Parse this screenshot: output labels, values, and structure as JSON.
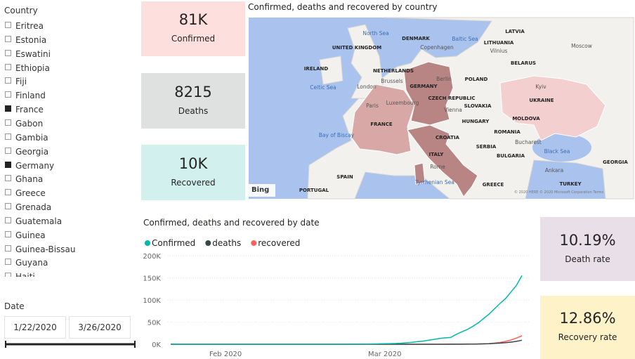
{
  "country_slicer": {
    "title": "Country",
    "items": [
      {
        "label": "Eritrea",
        "selected": false
      },
      {
        "label": "Estonia",
        "selected": false
      },
      {
        "label": "Eswatini",
        "selected": false
      },
      {
        "label": "Ethiopia",
        "selected": false
      },
      {
        "label": "Fiji",
        "selected": false
      },
      {
        "label": "Finland",
        "selected": false
      },
      {
        "label": "France",
        "selected": true
      },
      {
        "label": "Gabon",
        "selected": false
      },
      {
        "label": "Gambia",
        "selected": false
      },
      {
        "label": "Georgia",
        "selected": false
      },
      {
        "label": "Germany",
        "selected": true
      },
      {
        "label": "Ghana",
        "selected": false
      },
      {
        "label": "Greece",
        "selected": false
      },
      {
        "label": "Grenada",
        "selected": false
      },
      {
        "label": "Guatemala",
        "selected": false
      },
      {
        "label": "Guinea",
        "selected": false
      },
      {
        "label": "Guinea-Bissau",
        "selected": false
      },
      {
        "label": "Guyana",
        "selected": false
      },
      {
        "label": "Haiti",
        "selected": false
      }
    ]
  },
  "date_slicer": {
    "title": "Date",
    "start": "1/22/2020",
    "end": "3/26/2020"
  },
  "cards": [
    {
      "value": "81K",
      "label": "Confirmed"
    },
    {
      "value": "8215",
      "label": "Deaths"
    },
    {
      "value": "10K",
      "label": "Recovered"
    },
    {
      "value": "10.19%",
      "label": "Death rate"
    },
    {
      "value": "12.86%",
      "label": "Recovery rate"
    }
  ],
  "map": {
    "title": "Confirmed, deaths and recovered by country",
    "logo": "Bing",
    "attribution": "© 2020 HERE © 2020 Microsoft Corporation Terms",
    "labels": [
      "UNITED KINGDOM",
      "IRELAND",
      "London",
      "NETHERLANDS",
      "GERMANY",
      "Berlin",
      "DENMARK",
      "Copenhagen",
      "North Sea",
      "Baltic Sea",
      "LATVIA",
      "LITHUANIA",
      "Vilnius",
      "BELARUS",
      "Moscow",
      "POLAND",
      "Kyiv",
      "UKRAINE",
      "Celtic Sea",
      "Paris",
      "FRANCE",
      "CZECH REPUBLIC",
      "SLOVAKIA",
      "Vienna",
      "HUNGARY",
      "MOLDOVA",
      "ROMANIA",
      "Bucharest",
      "Bay of Biscay",
      "CROATIA",
      "SERBIA",
      "BULGARIA",
      "Black Sea",
      "ITALY",
      "Rome",
      "SPAIN",
      "GREECE",
      "TURKEY",
      "Ankara",
      "GEORGIA",
      "PORTUGAL",
      "Tyrrhenian Sea",
      "Brussels",
      "Luxembourg"
    ]
  },
  "chart_data": {
    "type": "line",
    "title": "Confirmed, deaths and recovered by date",
    "categories": [
      null,
      null,
      null,
      null,
      null,
      null,
      null,
      null,
      null,
      null,
      "Feb 2020",
      null,
      null,
      null,
      null,
      null,
      null,
      null,
      null,
      null,
      null,
      null,
      null,
      null,
      null,
      null,
      null,
      null,
      null,
      null,
      null,
      null,
      null,
      null,
      null,
      null,
      null,
      null,
      null,
      "Mar 2020",
      null,
      null,
      null,
      null,
      null,
      null,
      null,
      null,
      null,
      null,
      null,
      null,
      null,
      null,
      null,
      null,
      null,
      null,
      null,
      null,
      null,
      null,
      null,
      null,
      null
    ],
    "series": [
      {
        "name": "Confirmed",
        "color": "#01B8AA",
        "values": [
          0,
          0,
          0,
          2,
          3,
          4,
          4,
          5,
          5,
          6,
          7,
          10,
          12,
          14,
          15,
          16,
          16,
          18,
          18,
          20,
          20,
          20,
          22,
          23,
          27,
          28,
          30,
          30,
          32,
          35,
          40,
          50,
          80,
          150,
          250,
          350,
          450,
          650,
          900,
          1100,
          1350,
          1700,
          2400,
          3300,
          4500,
          5800,
          7200,
          9000,
          11000,
          13000,
          14500,
          15200,
          22000,
          28000,
          33000,
          40000,
          48000,
          58000,
          68000,
          80000,
          92000,
          103000,
          118000,
          133000,
          155000
        ]
      },
      {
        "name": "deaths",
        "color": "#374649",
        "values": [
          0,
          0,
          0,
          0,
          0,
          0,
          0,
          0,
          0,
          0,
          0,
          0,
          0,
          0,
          0,
          0,
          0,
          0,
          0,
          0,
          0,
          0,
          0,
          0,
          0,
          0,
          0,
          0,
          0,
          0,
          0,
          0,
          0,
          0,
          0,
          0,
          0,
          0,
          0,
          0,
          2,
          2,
          3,
          4,
          5,
          7,
          10,
          12,
          20,
          30,
          50,
          80,
          100,
          150,
          250,
          400,
          600,
          900,
          1300,
          1900,
          2600,
          3500,
          4800,
          6500,
          9000
        ]
      },
      {
        "name": "recovered",
        "color": "#FD625E",
        "values": [
          0,
          0,
          0,
          0,
          0,
          0,
          0,
          0,
          0,
          0,
          0,
          0,
          0,
          0,
          0,
          0,
          0,
          0,
          0,
          0,
          0,
          0,
          0,
          0,
          0,
          0,
          0,
          0,
          0,
          0,
          0,
          0,
          0,
          0,
          0,
          0,
          0,
          0,
          0,
          0,
          10,
          12,
          12,
          12,
          12,
          12,
          14,
          14,
          14,
          20,
          30,
          40,
          60,
          100,
          150,
          300,
          500,
          800,
          1500,
          2500,
          4000,
          6500,
          9500,
          14000,
          19000
        ]
      }
    ],
    "ylim": [
      0,
      200000
    ],
    "yticks": [
      {
        "value": 0,
        "label": "0K"
      },
      {
        "value": 50000,
        "label": "50K"
      },
      {
        "value": 100000,
        "label": "100K"
      },
      {
        "value": 150000,
        "label": "150K"
      },
      {
        "value": 200000,
        "label": "200K"
      }
    ],
    "grid": true
  }
}
